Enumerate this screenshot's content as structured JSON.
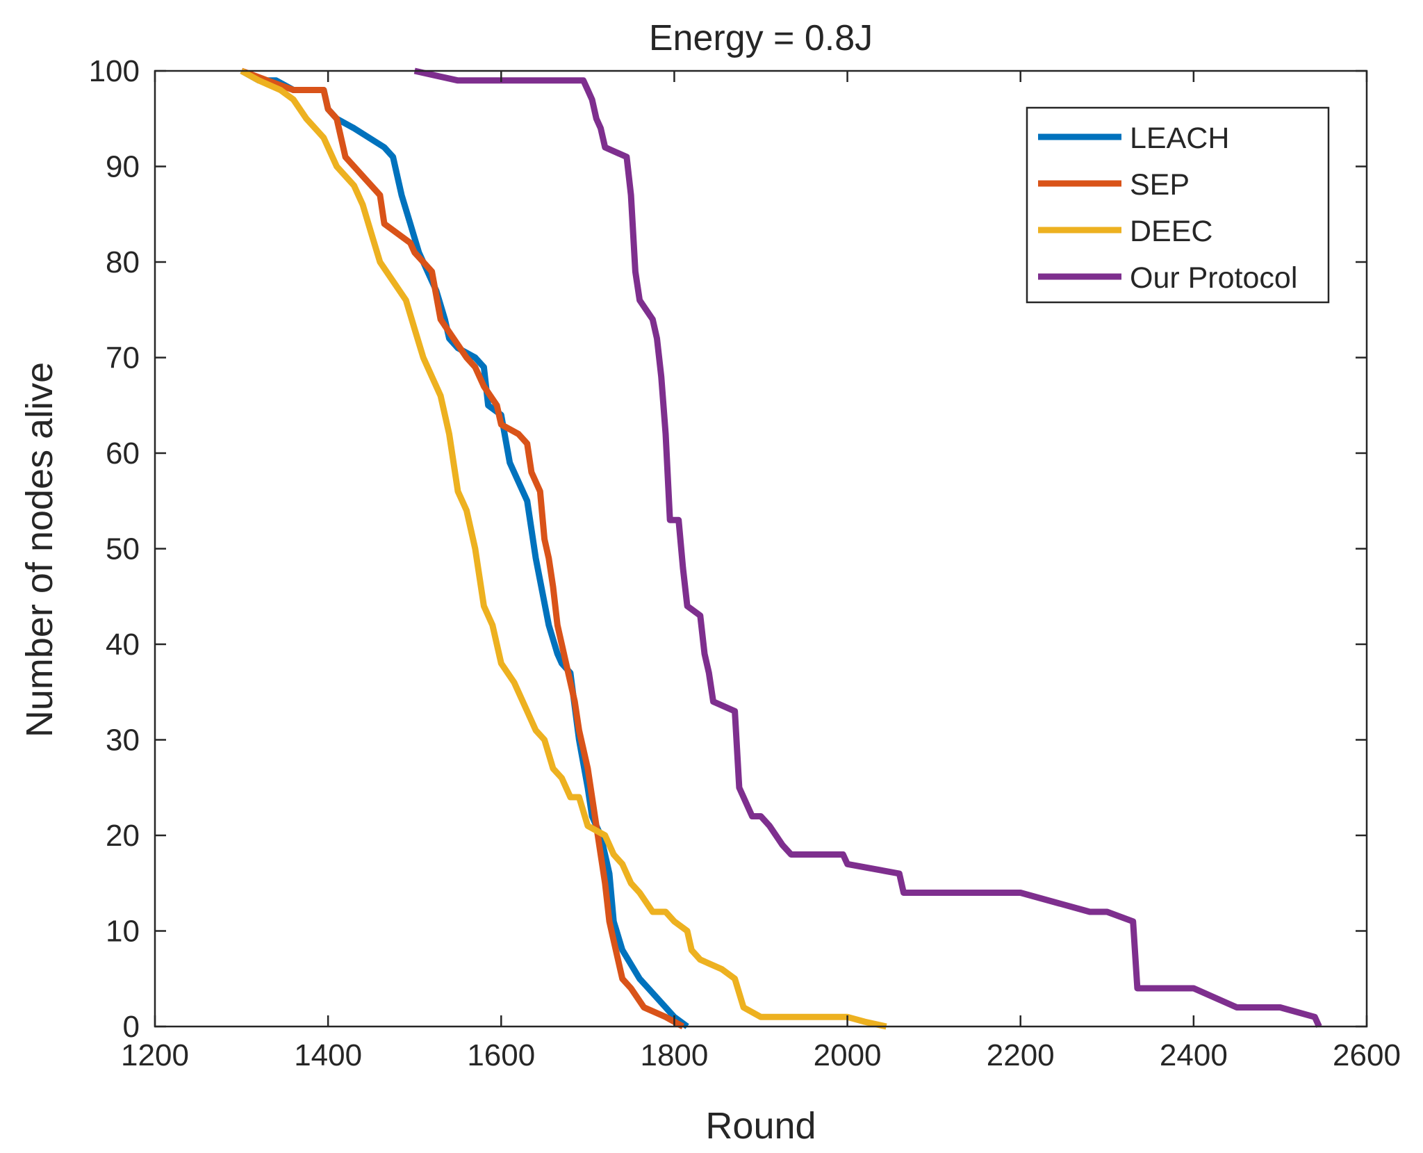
{
  "chart_data": {
    "type": "line",
    "title": "Energy = 0.8J",
    "xlabel": "Round",
    "ylabel": "Number of nodes alive",
    "xlim": [
      1200,
      2600
    ],
    "ylim": [
      0,
      100
    ],
    "xticks": [
      "1200",
      "1400",
      "1600",
      "1800",
      "2000",
      "2200",
      "2400",
      "2600"
    ],
    "yticks": [
      "0",
      "10",
      "20",
      "30",
      "40",
      "50",
      "60",
      "70",
      "80",
      "90",
      "100"
    ],
    "grid": false,
    "legend": {
      "position": "top-right"
    },
    "series": [
      {
        "name": "LEACH",
        "color": "#0072BD",
        "points": [
          [
            1300,
            100
          ],
          [
            1320,
            99
          ],
          [
            1340,
            99
          ],
          [
            1360,
            98
          ],
          [
            1395,
            98
          ],
          [
            1400,
            96
          ],
          [
            1410,
            95
          ],
          [
            1430,
            94
          ],
          [
            1465,
            92
          ],
          [
            1475,
            91
          ],
          [
            1485,
            87
          ],
          [
            1495,
            84
          ],
          [
            1505,
            81
          ],
          [
            1515,
            79
          ],
          [
            1525,
            77
          ],
          [
            1535,
            74
          ],
          [
            1540,
            72
          ],
          [
            1550,
            71
          ],
          [
            1570,
            70
          ],
          [
            1580,
            69
          ],
          [
            1585,
            65
          ],
          [
            1600,
            64
          ],
          [
            1610,
            59
          ],
          [
            1630,
            55
          ],
          [
            1640,
            49
          ],
          [
            1655,
            42
          ],
          [
            1665,
            39
          ],
          [
            1670,
            38
          ],
          [
            1680,
            37
          ],
          [
            1690,
            30
          ],
          [
            1700,
            25
          ],
          [
            1705,
            22
          ],
          [
            1715,
            20
          ],
          [
            1725,
            16
          ],
          [
            1730,
            11
          ],
          [
            1740,
            8
          ],
          [
            1760,
            5
          ],
          [
            1770,
            4
          ],
          [
            1790,
            2
          ],
          [
            1800,
            1
          ],
          [
            1815,
            0
          ]
        ]
      },
      {
        "name": "SEP",
        "color": "#D95319",
        "points": [
          [
            1300,
            100
          ],
          [
            1330,
            99
          ],
          [
            1360,
            98
          ],
          [
            1395,
            98
          ],
          [
            1400,
            96
          ],
          [
            1410,
            95
          ],
          [
            1420,
            91
          ],
          [
            1440,
            89
          ],
          [
            1460,
            87
          ],
          [
            1465,
            84
          ],
          [
            1480,
            83
          ],
          [
            1495,
            82
          ],
          [
            1500,
            81
          ],
          [
            1510,
            80
          ],
          [
            1520,
            79
          ],
          [
            1530,
            74
          ],
          [
            1545,
            72
          ],
          [
            1560,
            70
          ],
          [
            1570,
            69
          ],
          [
            1580,
            67
          ],
          [
            1595,
            65
          ],
          [
            1600,
            63
          ],
          [
            1620,
            62
          ],
          [
            1630,
            61
          ],
          [
            1635,
            58
          ],
          [
            1645,
            56
          ],
          [
            1650,
            51
          ],
          [
            1655,
            49
          ],
          [
            1660,
            46
          ],
          [
            1665,
            42
          ],
          [
            1675,
            38
          ],
          [
            1685,
            34
          ],
          [
            1690,
            31
          ],
          [
            1700,
            27
          ],
          [
            1705,
            24
          ],
          [
            1710,
            21
          ],
          [
            1715,
            18
          ],
          [
            1720,
            15
          ],
          [
            1725,
            11
          ],
          [
            1730,
            9
          ],
          [
            1740,
            5
          ],
          [
            1750,
            4
          ],
          [
            1765,
            2
          ],
          [
            1790,
            1
          ],
          [
            1810,
            0
          ]
        ]
      },
      {
        "name": "DEEC",
        "color": "#EDB120",
        "points": [
          [
            1300,
            100
          ],
          [
            1320,
            99
          ],
          [
            1345,
            98
          ],
          [
            1360,
            97
          ],
          [
            1375,
            95
          ],
          [
            1385,
            94
          ],
          [
            1395,
            93
          ],
          [
            1410,
            90
          ],
          [
            1430,
            88
          ],
          [
            1440,
            86
          ],
          [
            1450,
            83
          ],
          [
            1460,
            80
          ],
          [
            1475,
            78
          ],
          [
            1490,
            76
          ],
          [
            1500,
            73
          ],
          [
            1510,
            70
          ],
          [
            1520,
            68
          ],
          [
            1530,
            66
          ],
          [
            1540,
            62
          ],
          [
            1550,
            56
          ],
          [
            1560,
            54
          ],
          [
            1570,
            50
          ],
          [
            1580,
            44
          ],
          [
            1590,
            42
          ],
          [
            1600,
            38
          ],
          [
            1615,
            36
          ],
          [
            1630,
            33
          ],
          [
            1640,
            31
          ],
          [
            1650,
            30
          ],
          [
            1660,
            27
          ],
          [
            1670,
            26
          ],
          [
            1680,
            24
          ],
          [
            1690,
            24
          ],
          [
            1700,
            21
          ],
          [
            1720,
            20
          ],
          [
            1730,
            18
          ],
          [
            1740,
            17
          ],
          [
            1750,
            15
          ],
          [
            1760,
            14
          ],
          [
            1775,
            12
          ],
          [
            1790,
            12
          ],
          [
            1800,
            11
          ],
          [
            1815,
            10
          ],
          [
            1820,
            8
          ],
          [
            1830,
            7
          ],
          [
            1855,
            6
          ],
          [
            1870,
            5
          ],
          [
            1880,
            2
          ],
          [
            1900,
            1
          ],
          [
            1950,
            1
          ],
          [
            2000,
            1
          ],
          [
            2020,
            0.5
          ],
          [
            2045,
            0
          ]
        ]
      },
      {
        "name": "Our Protocol",
        "color": "#7E2F8E",
        "points": [
          [
            1500,
            100
          ],
          [
            1550,
            99
          ],
          [
            1600,
            99
          ],
          [
            1695,
            99
          ],
          [
            1700,
            98
          ],
          [
            1705,
            97
          ],
          [
            1710,
            95
          ],
          [
            1715,
            94
          ],
          [
            1720,
            92
          ],
          [
            1745,
            91
          ],
          [
            1750,
            87
          ],
          [
            1755,
            79
          ],
          [
            1760,
            76
          ],
          [
            1775,
            74
          ],
          [
            1780,
            72
          ],
          [
            1785,
            68
          ],
          [
            1790,
            62
          ],
          [
            1795,
            53
          ],
          [
            1805,
            53
          ],
          [
            1810,
            48
          ],
          [
            1815,
            44
          ],
          [
            1830,
            43
          ],
          [
            1835,
            39
          ],
          [
            1840,
            37
          ],
          [
            1845,
            34
          ],
          [
            1870,
            33
          ],
          [
            1875,
            25
          ],
          [
            1885,
            23
          ],
          [
            1890,
            22
          ],
          [
            1900,
            22
          ],
          [
            1910,
            21
          ],
          [
            1925,
            19
          ],
          [
            1935,
            18
          ],
          [
            1995,
            18
          ],
          [
            2000,
            17
          ],
          [
            2060,
            16
          ],
          [
            2065,
            14
          ],
          [
            2200,
            14
          ],
          [
            2280,
            12
          ],
          [
            2300,
            12
          ],
          [
            2330,
            11
          ],
          [
            2335,
            4
          ],
          [
            2400,
            4
          ],
          [
            2450,
            2
          ],
          [
            2500,
            2
          ],
          [
            2540,
            1
          ],
          [
            2545,
            0
          ]
        ]
      }
    ]
  }
}
